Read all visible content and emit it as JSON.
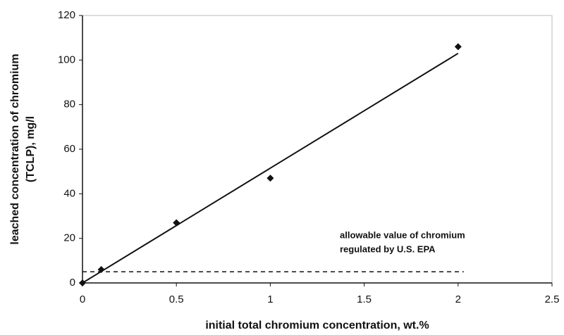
{
  "chart_data": {
    "type": "scatter",
    "x_label": "initial total chromium concentration, wt.%",
    "y_label": [
      "leached concentration of chromium",
      "(TCLP), mg/l"
    ],
    "annotation": [
      "allowable value of chromium",
      "regulated by U.S. EPA"
    ],
    "xlim": [
      0,
      2.5
    ],
    "xticks": [
      0,
      0.5,
      1,
      1.5,
      2,
      2.5
    ],
    "ylim": [
      0,
      120
    ],
    "yticks": [
      0,
      20,
      40,
      60,
      80,
      100,
      120
    ],
    "grid": false,
    "series": [
      {
        "mode": "markers",
        "marker": "diamond",
        "color": "#111111",
        "x": [
          0,
          0.1,
          0.5,
          1,
          2
        ],
        "values": [
          0,
          6,
          27,
          47,
          106
        ]
      },
      {
        "mode": "line",
        "dash": "solid",
        "color": "#111111",
        "x": [
          0,
          2
        ],
        "values": [
          0,
          103
        ]
      },
      {
        "mode": "line",
        "dash": "dashed",
        "color": "#111111",
        "x": [
          0,
          2.03
        ],
        "values": [
          5,
          5
        ]
      }
    ]
  }
}
